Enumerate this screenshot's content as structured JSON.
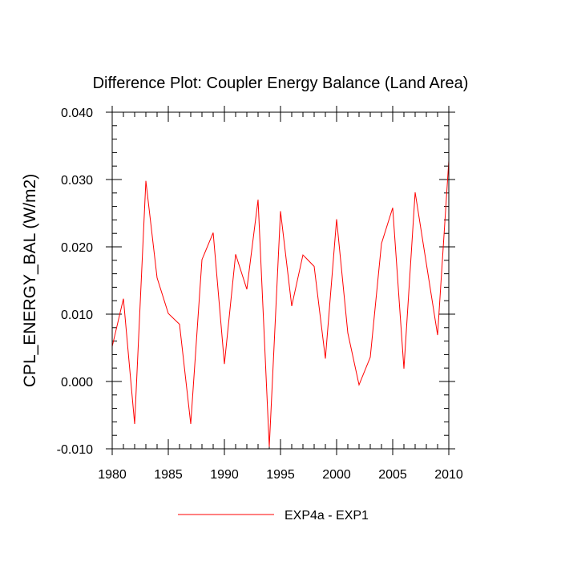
{
  "chart_data": {
    "type": "line",
    "title": "Difference Plot: Coupler Energy Balance (Land Area)",
    "xlabel": "",
    "ylabel": "CPL_ENERGY_BAL  (W/m2)",
    "xlim": [
      1980,
      2010
    ],
    "ylim": [
      -0.01,
      0.04
    ],
    "x_ticks": [
      1980,
      1985,
      1990,
      1995,
      2000,
      2005,
      2010
    ],
    "x_tick_labels": [
      "1980",
      "1985",
      "1990",
      "1995",
      "2000",
      "2005",
      "2010"
    ],
    "y_ticks": [
      -0.01,
      0.0,
      0.01,
      0.02,
      0.03,
      0.04
    ],
    "y_tick_labels": [
      "-0.010",
      "0.000",
      "0.010",
      "0.020",
      "0.030",
      "0.040"
    ],
    "grid": false,
    "legend_position": "bottom-center",
    "series": [
      {
        "name": "EXP4a - EXP1",
        "color": "#ff0000",
        "x": [
          1980,
          1981,
          1982,
          1983,
          1984,
          1985,
          1986,
          1987,
          1988,
          1989,
          1990,
          1991,
          1992,
          1993,
          1994,
          1995,
          1996,
          1997,
          1998,
          1999,
          2000,
          2001,
          2002,
          2003,
          2004,
          2005,
          2006,
          2007,
          2008,
          2009,
          2010
        ],
        "values": [
          0.0052,
          0.0123,
          -0.0063,
          0.0298,
          0.0154,
          0.0101,
          0.0085,
          -0.0063,
          0.0181,
          0.0221,
          0.0026,
          0.0189,
          0.0137,
          0.027,
          -0.0097,
          0.0253,
          0.0112,
          0.0188,
          0.0171,
          0.0034,
          0.0241,
          0.0072,
          -0.0005,
          0.0036,
          0.0205,
          0.0258,
          0.0019,
          0.0281,
          0.0175,
          0.0069,
          0.0328
        ]
      }
    ]
  }
}
